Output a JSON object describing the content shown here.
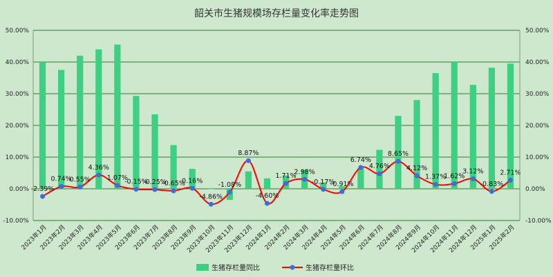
{
  "chart_data": {
    "type": "bar+line",
    "title": "韶关市生猪规模场存栏量变化率走势图",
    "categories": [
      "2023年1月",
      "2023年2月",
      "2023年3月",
      "2023年4月",
      "2023年5月",
      "2023年6月",
      "2023年7月",
      "2023年8月",
      "2023年9月",
      "2023年10月",
      "2023年11月",
      "2023年12月",
      "2024年1月",
      "2024年2月",
      "2024年3月",
      "2024年4月",
      "2024年5月",
      "2024年6月",
      "2024年7月",
      "2024年8月",
      "2024年9月",
      "2024年10月",
      "2024年11月",
      "2024年12月",
      "2025年1月",
      "2025年2月"
    ],
    "series": [
      {
        "name": "生猪存栏量同比",
        "type": "bar",
        "color": "#3ecf82",
        "values": [
          40.0,
          37.5,
          42.0,
          44.0,
          45.5,
          29.3,
          23.5,
          13.8,
          6.3,
          0.0,
          -3.5,
          5.5,
          3.3,
          4.2,
          6.0,
          2.0,
          0.8,
          6.5,
          12.3,
          23.0,
          28.0,
          36.5,
          40.2,
          32.8,
          38.2,
          39.5
        ]
      },
      {
        "name": "生猪存栏量环比",
        "type": "line",
        "color": "#ff0000",
        "marker_color": "#3b6fe0",
        "values": [
          -2.39,
          0.74,
          0.55,
          4.36,
          1.07,
          -0.15,
          -0.25,
          -0.65,
          0.16,
          -4.86,
          -1.08,
          8.87,
          -4.6,
          1.71,
          2.98,
          -0.17,
          -0.91,
          6.74,
          4.76,
          8.65,
          4.12,
          1.37,
          1.62,
          3.12,
          -0.83,
          2.71
        ],
        "labels": [
          "-2.39%",
          "0.74%",
          "0.55%",
          "4.36%",
          "1.07%",
          "-0.15%",
          "-0.25%",
          "-0.65%",
          "0.16%",
          "-4.86%",
          "-1.08%",
          "8.87%",
          "-4.60%",
          "1.71%",
          "2.98%",
          "-0.17%",
          "-0.91%",
          "6.74%",
          "4.76%",
          "8.65%",
          "4.12%",
          "1.37%",
          "1.62%",
          "3.12%",
          "-0.83%",
          "2.71%"
        ]
      }
    ],
    "y_left": {
      "min": -10,
      "max": 50,
      "ticks": [
        "-10.00%",
        "0.00%",
        "10.00%",
        "20.00%",
        "30.00%",
        "40.00%",
        "50.00%"
      ]
    },
    "y_right": {
      "min": -10,
      "max": 50,
      "ticks": [
        "-10.00%",
        "0.00%",
        "10.00%",
        "20.00%",
        "30.00%",
        "40.00%",
        "50.00%"
      ]
    },
    "grid": true,
    "legend_position": "bottom",
    "colors": {
      "background": "#cde8cd",
      "grid": "#2f7a2f"
    }
  }
}
